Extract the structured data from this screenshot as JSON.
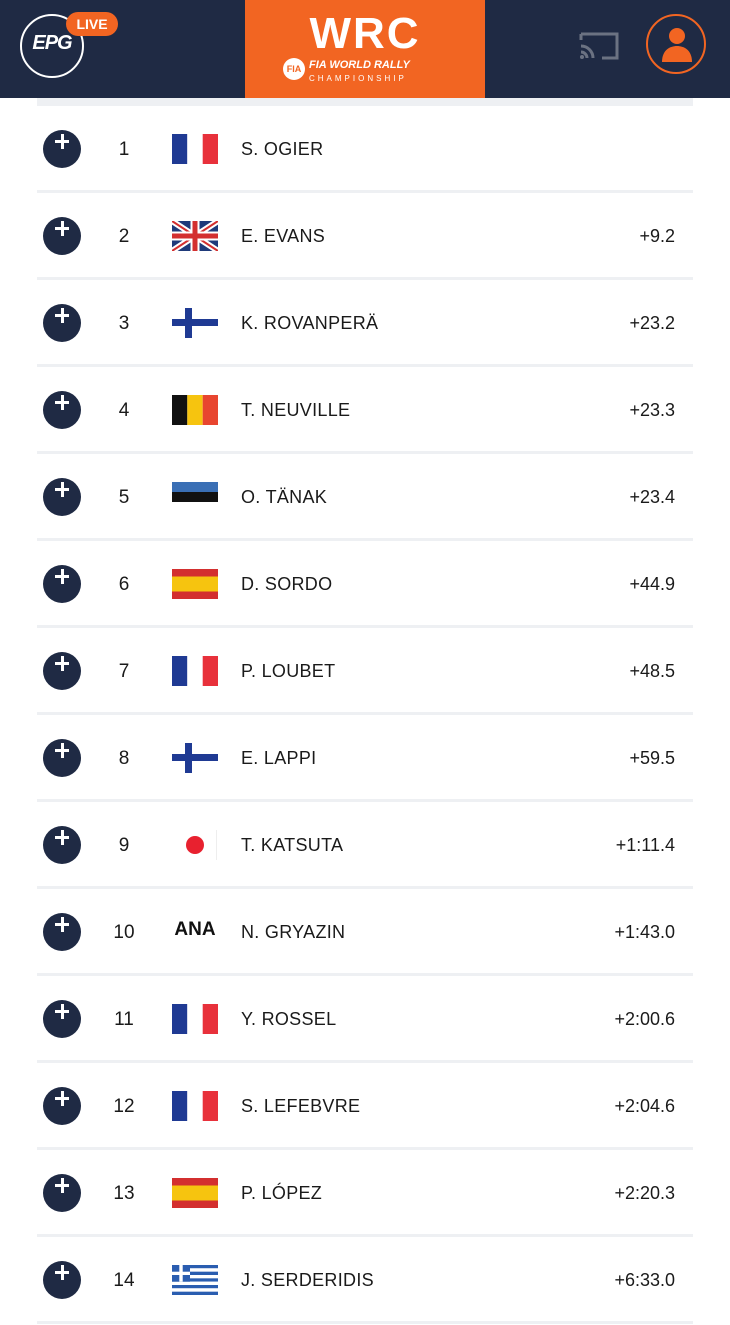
{
  "header": {
    "epg_label": "EPG",
    "live_label": "LIVE",
    "brand_main": "WRC",
    "brand_fia": "FIA",
    "brand_sub": "FIA WORLD RALLY",
    "brand_sub2": "CHAMPIONSHIP",
    "cast_icon": "cast-icon",
    "user_icon": "user-icon",
    "colors": {
      "navy": "#1f2a44",
      "orange": "#f26522"
    }
  },
  "standings": [
    {
      "position": "1",
      "flag": "FRA",
      "driver": "S. OGIER",
      "gap": ""
    },
    {
      "position": "2",
      "flag": "GBR",
      "driver": "E. EVANS",
      "gap": "+9.2"
    },
    {
      "position": "3",
      "flag": "FIN",
      "driver": "K. ROVANPERÄ",
      "gap": "+23.2"
    },
    {
      "position": "4",
      "flag": "BEL",
      "driver": "T. NEUVILLE",
      "gap": "+23.3"
    },
    {
      "position": "5",
      "flag": "EST",
      "driver": "O. TÄNAK",
      "gap": "+23.4"
    },
    {
      "position": "6",
      "flag": "ESP",
      "driver": "D. SORDO",
      "gap": "+44.9"
    },
    {
      "position": "7",
      "flag": "FRA",
      "driver": "P. LOUBET",
      "gap": "+48.5"
    },
    {
      "position": "8",
      "flag": "FIN",
      "driver": "E. LAPPI",
      "gap": "+59.5"
    },
    {
      "position": "9",
      "flag": "JPN",
      "driver": "T. KATSUTA",
      "gap": "+1:11.4"
    },
    {
      "position": "10",
      "flag": "ANA",
      "flag_text": "ANA",
      "driver": "N. GRYAZIN",
      "gap": "+1:43.0"
    },
    {
      "position": "11",
      "flag": "FRA",
      "driver": "Y. ROSSEL",
      "gap": "+2:00.6"
    },
    {
      "position": "12",
      "flag": "FRA",
      "driver": "S. LEFEBVRE",
      "gap": "+2:04.6"
    },
    {
      "position": "13",
      "flag": "ESP",
      "driver": "P. LÓPEZ",
      "gap": "+2:20.3"
    },
    {
      "position": "14",
      "flag": "GRE",
      "driver": "J. SERDERIDIS",
      "gap": "+6:33.0"
    }
  ]
}
